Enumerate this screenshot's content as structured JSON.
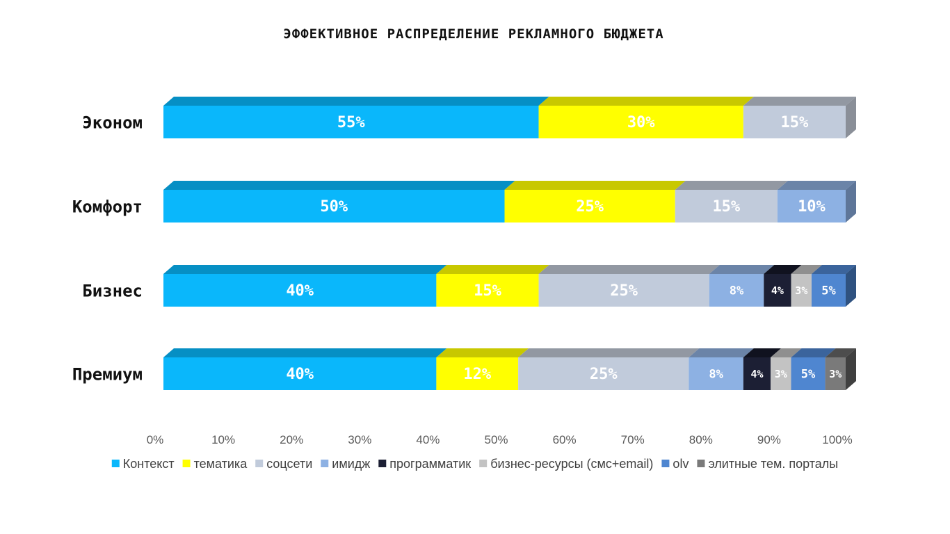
{
  "chart_data": {
    "type": "bar",
    "orientation": "horizontal",
    "stacked": true,
    "title": "ЭФФЕКТИВНОЕ РАСПРЕДЕЛЕНИЕ РЕКЛАМНОГО БЮДЖЕТА",
    "categories": [
      "Эконом",
      "Комфорт",
      "Бизнес",
      "Премиум"
    ],
    "series": [
      {
        "name": "Контекст",
        "color": "#0ab7fb",
        "top": "#068fc4",
        "side": "#0573a0",
        "values": [
          55,
          50,
          40,
          40
        ],
        "labels": [
          "55%",
          "50%",
          "40%",
          "40%"
        ]
      },
      {
        "name": "тематика",
        "color": "#ffff00",
        "top": "#c8c800",
        "side": "#a0a000",
        "values": [
          30,
          25,
          15,
          12
        ],
        "labels": [
          "30%",
          "25%",
          "15%",
          "12%"
        ]
      },
      {
        "name": "соцсети",
        "color": "#c1cbdb",
        "top": "#9298a2",
        "side": "#8a8f98",
        "values": [
          15,
          15,
          25,
          25
        ],
        "labels": [
          "15%",
          "15%",
          "25%",
          "25%"
        ]
      },
      {
        "name": "имидж",
        "color": "#8db1e3",
        "top": "#6b84a8",
        "side": "#5e7699",
        "values": [
          0,
          10,
          8,
          8
        ],
        "labels": [
          "",
          "10%",
          "8%",
          "8%"
        ]
      },
      {
        "name": "программатик",
        "color": "#1c1f34",
        "top": "#10121f",
        "side": "#0d0f1a",
        "values": [
          0,
          0,
          4,
          4
        ],
        "labels": [
          "",
          "",
          "4%",
          "4%"
        ]
      },
      {
        "name": "бизнес-ресурсы (смс+email)",
        "color": "#c3c3c3",
        "top": "#8f8f8f",
        "side": "#858585",
        "values": [
          0,
          0,
          3,
          3
        ],
        "labels": [
          "",
          "",
          "3%",
          "3%"
        ]
      },
      {
        "name": "olv",
        "color": "#4f86d0",
        "top": "#3b649c",
        "side": "#2f5280",
        "values": [
          0,
          0,
          5,
          5
        ],
        "labels": [
          "",
          "",
          "5%",
          "5%"
        ]
      },
      {
        "name": "элитные тем. порталы",
        "color": "#7a7a7a",
        "top": "#4d4d4d",
        "side": "#404040",
        "values": [
          0,
          0,
          0,
          3
        ],
        "labels": [
          "",
          "",
          "",
          "3%"
        ]
      }
    ],
    "xlim": [
      0,
      100
    ],
    "x_ticks": [
      "0%",
      "10%",
      "20%",
      "30%",
      "40%",
      "50%",
      "60%",
      "70%",
      "80%",
      "90%",
      "100%"
    ],
    "legend_position": "bottom",
    "grid": false
  }
}
